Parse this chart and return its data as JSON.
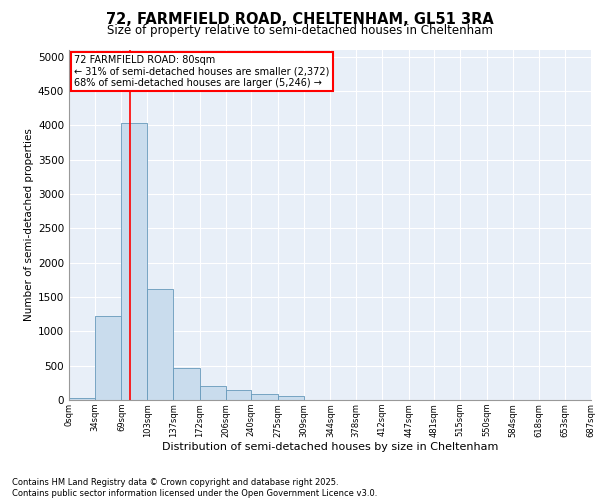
{
  "title_line1": "72, FARMFIELD ROAD, CHELTENHAM, GL51 3RA",
  "title_line2": "Size of property relative to semi-detached houses in Cheltenham",
  "xlabel": "Distribution of semi-detached houses by size in Cheltenham",
  "ylabel": "Number of semi-detached properties",
  "footnote": "Contains HM Land Registry data © Crown copyright and database right 2025.\nContains public sector information licensed under the Open Government Licence v3.0.",
  "annotation_title": "72 FARMFIELD ROAD: 80sqm",
  "annotation_line2": "← 31% of semi-detached houses are smaller (2,372)",
  "annotation_line3": "68% of semi-detached houses are larger (5,246) →",
  "property_size": 80,
  "bar_color": "#c9dced",
  "bar_edge_color": "#6699bb",
  "vline_color": "red",
  "annotation_box_color": "red",
  "background_color": "#e8eff8",
  "grid_color": "#ffffff",
  "ylim": [
    0,
    5100
  ],
  "yticks": [
    0,
    500,
    1000,
    1500,
    2000,
    2500,
    3000,
    3500,
    4000,
    4500,
    5000
  ],
  "bin_edges": [
    0,
    34,
    69,
    103,
    137,
    172,
    206,
    240,
    275,
    309,
    344,
    378,
    412,
    447,
    481,
    515,
    550,
    584,
    618,
    653,
    687
  ],
  "bin_labels": [
    "0sqm",
    "34sqm",
    "69sqm",
    "103sqm",
    "137sqm",
    "172sqm",
    "206sqm",
    "240sqm",
    "275sqm",
    "309sqm",
    "344sqm",
    "378sqm",
    "412sqm",
    "447sqm",
    "481sqm",
    "515sqm",
    "550sqm",
    "584sqm",
    "618sqm",
    "653sqm",
    "687sqm"
  ],
  "bar_heights": [
    30,
    1220,
    4040,
    1620,
    460,
    200,
    140,
    90,
    60,
    0,
    0,
    0,
    0,
    0,
    0,
    0,
    0,
    0,
    0,
    0
  ]
}
